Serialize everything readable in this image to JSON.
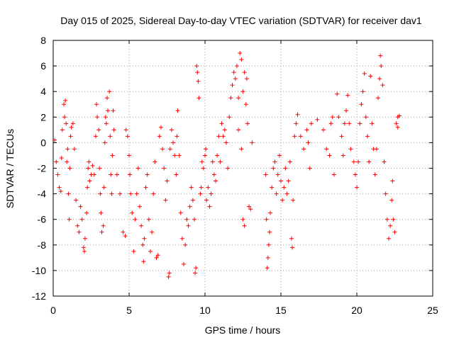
{
  "chart_data": {
    "type": "scatter",
    "title": "Day 015 of 2025, Sidereal Day-to-day VTEC variation (SDTVAR) for receiver dav1",
    "xlabel": "GPS time / hours",
    "ylabel": "SDTVAR / TECUs",
    "xlim": [
      0,
      25
    ],
    "ylim": [
      -12,
      8
    ],
    "xticks": [
      0,
      5,
      10,
      15,
      20,
      25
    ],
    "yticks": [
      -12,
      -10,
      -8,
      -6,
      -4,
      -2,
      0,
      2,
      4,
      6,
      8
    ],
    "xtick_labels": [
      "0",
      "5",
      "10",
      "15",
      "20",
      "25"
    ],
    "ytick_labels": [
      "-12",
      "-10",
      "-8",
      "-6",
      "-4",
      "-2",
      "0",
      "2",
      "4",
      "6",
      "8"
    ],
    "grid": true,
    "marker": "+",
    "color": "#ff0000",
    "series": [
      {
        "name": "SDTVAR",
        "points": [
          [
            0.1,
            0.2
          ],
          [
            0.2,
            -1.5
          ],
          [
            0.3,
            -2.5
          ],
          [
            0.4,
            -3.5
          ],
          [
            0.5,
            -3.8
          ],
          [
            0.55,
            -1.2
          ],
          [
            0.6,
            1.0
          ],
          [
            0.7,
            3.0
          ],
          [
            0.75,
            2.0
          ],
          [
            0.8,
            3.3
          ],
          [
            0.85,
            1.5
          ],
          [
            0.9,
            -1.5
          ],
          [
            0.95,
            -0.5
          ],
          [
            1.0,
            -4.0
          ],
          [
            1.05,
            -6.0
          ],
          [
            1.1,
            -2.0
          ],
          [
            1.15,
            0.5
          ],
          [
            1.2,
            1.2
          ],
          [
            1.3,
            1.5
          ],
          [
            1.4,
            -0.5
          ],
          [
            1.5,
            -4.5
          ],
          [
            1.6,
            -6.5
          ],
          [
            1.7,
            -7.0
          ],
          [
            1.8,
            -5.0
          ],
          [
            1.9,
            -6.0
          ],
          [
            2.0,
            -8.2
          ],
          [
            2.05,
            -8.5
          ],
          [
            2.1,
            -7.5
          ],
          [
            2.2,
            -5.5
          ],
          [
            2.25,
            -3.5
          ],
          [
            2.3,
            -2.0
          ],
          [
            2.35,
            -1.5
          ],
          [
            2.4,
            -3.0
          ],
          [
            2.5,
            -2.5
          ],
          [
            2.6,
            -1.8
          ],
          [
            2.7,
            -2.5
          ],
          [
            2.8,
            0.5
          ],
          [
            2.85,
            3.0
          ],
          [
            2.9,
            2.0
          ],
          [
            3.0,
            1.0
          ],
          [
            3.05,
            -2.0
          ],
          [
            3.1,
            -4.0
          ],
          [
            3.15,
            -5.5
          ],
          [
            3.2,
            -7.0
          ],
          [
            3.3,
            -6.5
          ],
          [
            3.35,
            -3.5
          ],
          [
            3.4,
            0.0
          ],
          [
            3.45,
            2.0
          ],
          [
            3.5,
            1.5
          ],
          [
            3.55,
            3.5
          ],
          [
            3.6,
            2.5
          ],
          [
            3.7,
            4.0
          ],
          [
            3.75,
            0.5
          ],
          [
            3.8,
            -2.5
          ],
          [
            3.85,
            -4.0
          ],
          [
            3.9,
            -1.0
          ],
          [
            3.95,
            2.5
          ],
          [
            4.0,
            1.0
          ],
          [
            4.2,
            -2.5
          ],
          [
            4.4,
            -4.0
          ],
          [
            4.6,
            -7.0
          ],
          [
            4.75,
            -7.3
          ],
          [
            4.8,
            1.0
          ],
          [
            4.9,
            0.5
          ],
          [
            5.0,
            -1.0
          ],
          [
            5.05,
            -2.5
          ],
          [
            5.1,
            -4.0
          ],
          [
            5.2,
            -5.5
          ],
          [
            5.3,
            -8.5
          ],
          [
            5.4,
            -6.0
          ],
          [
            5.5,
            -4.0
          ],
          [
            5.6,
            -2.0
          ],
          [
            5.7,
            -5.0
          ],
          [
            5.8,
            -6.5
          ],
          [
            5.9,
            -8.0
          ],
          [
            5.95,
            -9.3
          ],
          [
            6.0,
            -7.5
          ],
          [
            6.1,
            -3.5
          ],
          [
            6.2,
            -2.5
          ],
          [
            6.3,
            -6.0
          ],
          [
            6.4,
            -8.5
          ],
          [
            6.5,
            -7.0
          ],
          [
            6.6,
            -4.0
          ],
          [
            6.7,
            -1.5
          ],
          [
            6.8,
            -9.0
          ],
          [
            6.9,
            -8.8
          ],
          [
            7.0,
            0.5
          ],
          [
            7.1,
            1.2
          ],
          [
            7.2,
            -0.5
          ],
          [
            7.3,
            -2.0
          ],
          [
            7.4,
            -4.5
          ],
          [
            7.5,
            -3.0
          ],
          [
            7.6,
            -10.5
          ],
          [
            7.65,
            -10.2
          ],
          [
            7.7,
            -0.5
          ],
          [
            7.8,
            1.0
          ],
          [
            7.9,
            0.0
          ],
          [
            8.0,
            -1.0
          ],
          [
            8.1,
            -2.5
          ],
          [
            8.15,
            0.5
          ],
          [
            8.2,
            2.5
          ],
          [
            8.3,
            -1.0
          ],
          [
            8.4,
            -5.5
          ],
          [
            8.5,
            -7.5
          ],
          [
            8.6,
            -9.5
          ],
          [
            8.7,
            -8.0
          ],
          [
            8.8,
            -6.0
          ],
          [
            8.9,
            -6.5
          ],
          [
            9.0,
            -5.0
          ],
          [
            9.1,
            -3.5
          ],
          [
            9.2,
            -4.5
          ],
          [
            9.3,
            -6.0
          ],
          [
            9.35,
            -10.2
          ],
          [
            9.4,
            -9.8
          ],
          [
            9.45,
            6.0
          ],
          [
            9.5,
            5.5
          ],
          [
            9.55,
            4.8
          ],
          [
            9.6,
            3.5
          ],
          [
            9.7,
            -4.0
          ],
          [
            9.75,
            -3.5
          ],
          [
            9.8,
            -1.5
          ],
          [
            9.9,
            -2.0
          ],
          [
            10.0,
            -1.0
          ],
          [
            10.05,
            -0.5
          ],
          [
            10.1,
            -4.5
          ],
          [
            10.2,
            -3.5
          ],
          [
            10.3,
            -5.0
          ],
          [
            10.4,
            -4.0
          ],
          [
            10.5,
            -1.5
          ],
          [
            10.6,
            -2.5
          ],
          [
            10.7,
            -3.0
          ],
          [
            10.8,
            -1.0
          ],
          [
            10.9,
            0.5
          ],
          [
            11.0,
            -1.5
          ],
          [
            11.1,
            1.5
          ],
          [
            11.2,
            0.5
          ],
          [
            11.3,
            1.0
          ],
          [
            11.4,
            0.0
          ],
          [
            11.5,
            -2.0
          ],
          [
            11.6,
            2.0
          ],
          [
            11.7,
            3.5
          ],
          [
            11.8,
            4.5
          ],
          [
            11.9,
            5.5
          ],
          [
            12.0,
            5.0
          ],
          [
            12.1,
            6.0
          ],
          [
            12.2,
            3.5
          ],
          [
            12.3,
            7.0
          ],
          [
            12.4,
            6.5
          ],
          [
            12.5,
            4.0
          ],
          [
            12.6,
            5.5
          ],
          [
            12.7,
            3.0
          ],
          [
            12.75,
            5.0
          ],
          [
            12.8,
            1.5
          ],
          [
            12.2,
            1.0
          ],
          [
            12.4,
            -0.5
          ],
          [
            12.5,
            -6.0
          ],
          [
            12.6,
            -6.5
          ],
          [
            12.9,
            -5.0
          ],
          [
            13.0,
            -5.2
          ],
          [
            13.1,
            0.0
          ],
          [
            14.0,
            -2.5
          ],
          [
            14.05,
            -6.0
          ],
          [
            14.1,
            -9.8
          ],
          [
            14.15,
            -9.0
          ],
          [
            14.2,
            -8.0
          ],
          [
            14.25,
            -7.0
          ],
          [
            14.3,
            -5.5
          ],
          [
            14.4,
            -3.5
          ],
          [
            14.5,
            -2.0
          ],
          [
            14.6,
            -1.5
          ],
          [
            14.7,
            -4.0
          ],
          [
            14.8,
            -2.5
          ],
          [
            14.9,
            -1.0
          ],
          [
            15.0,
            -3.0
          ],
          [
            15.1,
            -4.5
          ],
          [
            15.2,
            -3.5
          ],
          [
            15.3,
            -2.0
          ],
          [
            15.4,
            -4.0
          ],
          [
            15.5,
            -3.0
          ],
          [
            15.6,
            -1.5
          ],
          [
            15.7,
            -7.5
          ],
          [
            15.75,
            -8.2
          ],
          [
            15.8,
            -4.5
          ],
          [
            15.9,
            0.5
          ],
          [
            16.0,
            1.5
          ],
          [
            16.1,
            2.2
          ],
          [
            16.3,
            0.5
          ],
          [
            16.5,
            -0.5
          ],
          [
            16.7,
            1.0
          ],
          [
            16.8,
            0.0
          ],
          [
            16.9,
            -2.0
          ],
          [
            17.0,
            1.5
          ],
          [
            17.4,
            1.8
          ],
          [
            17.8,
            1.0
          ],
          [
            18.0,
            -0.5
          ],
          [
            18.2,
            -1.0
          ],
          [
            18.3,
            1.5
          ],
          [
            18.4,
            2.0
          ],
          [
            18.5,
            -2.5
          ],
          [
            18.7,
            3.8
          ],
          [
            18.8,
            2.0
          ],
          [
            19.0,
            0.5
          ],
          [
            19.1,
            -1.0
          ],
          [
            19.2,
            1.5
          ],
          [
            19.3,
            2.5
          ],
          [
            19.4,
            3.7
          ],
          [
            19.5,
            1.5
          ],
          [
            19.6,
            -0.5
          ],
          [
            19.8,
            -1.5
          ],
          [
            19.9,
            -2.5
          ],
          [
            20.0,
            -3.5
          ],
          [
            20.1,
            -1.5
          ],
          [
            20.2,
            1.5
          ],
          [
            20.3,
            3.0
          ],
          [
            20.4,
            4.0
          ],
          [
            20.5,
            5.4
          ],
          [
            20.6,
            2.0
          ],
          [
            20.7,
            0.5
          ],
          [
            20.8,
            -1.5
          ],
          [
            20.9,
            5.2
          ],
          [
            21.0,
            1.5
          ],
          [
            21.1,
            -0.5
          ],
          [
            21.2,
            -2.5
          ],
          [
            21.3,
            -0.5
          ],
          [
            21.4,
            3.5
          ],
          [
            21.5,
            5.0
          ],
          [
            21.55,
            6.8
          ],
          [
            21.6,
            6.0
          ],
          [
            21.7,
            4.5
          ],
          [
            21.8,
            -1.5
          ],
          [
            21.9,
            -4.0
          ],
          [
            22.0,
            -6.0
          ],
          [
            22.1,
            -7.5
          ],
          [
            22.2,
            -6.5
          ],
          [
            22.3,
            -4.5
          ],
          [
            22.35,
            -3.0
          ],
          [
            22.4,
            -6.0
          ],
          [
            22.5,
            -7.0
          ],
          [
            22.6,
            1.5
          ],
          [
            22.7,
            2.0
          ],
          [
            22.8,
            2.1
          ],
          [
            22.7,
            1.2
          ]
        ]
      }
    ]
  }
}
